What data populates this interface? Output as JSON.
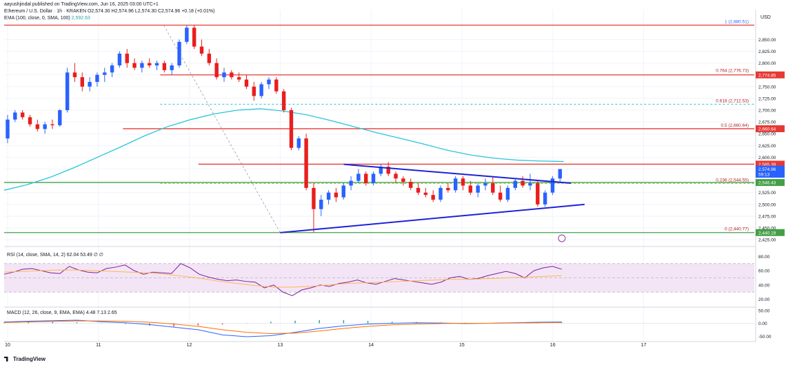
{
  "header": {
    "published": "aayushjindal published on TradingView.com, Jun 16, 2025 03:00 UTC+1",
    "symbol_line": "Ethereum / U.S. Dollar · 1h · KRAKEN  O2,574.30  H2,574.96  L2,574.30  C2,574.96  +0.18 (+0.01%)",
    "ema_line": "EMA (100, close, 0, SMA, 100)",
    "ema_value": "2,592.63"
  },
  "price_axis": {
    "currency": "USD"
  },
  "rsi_label": "RSI (14, close, SMA, 14, 2)",
  "rsi_values": "62.04  53.49  ∅  ∅",
  "macd_label": "MACD (12, 26, close, 9, EMA, EMA)",
  "macd_values": "4.48  7.13  2.65",
  "branding": {
    "logo_text": "TradingView"
  },
  "colors": {
    "bull": "#2962ff",
    "bear": "#e91e1e",
    "ema": "#26c6da",
    "resistance": "#e53935",
    "support": "#43a047",
    "trendline": "#1e22d6",
    "rsi": "#7b1fa2",
    "rsi_band": "#f3e5f5",
    "macd": "#2962ff",
    "signal": "#ff6d00"
  },
  "chart_data": [
    {
      "type": "candlestick",
      "title": "Ethereum / U.S. Dollar · 1h · KRAKEN",
      "x_ticks": [
        "10",
        "11",
        "12",
        "13",
        "14",
        "15",
        "16",
        "17"
      ],
      "y_ticks": [
        "2,425.00",
        "2,450.00",
        "2,475.00",
        "2,500.00",
        "2,525.00",
        "2,550.00",
        "2,575.00",
        "2,600.00",
        "2,625.00",
        "2,650.00",
        "2,675.00",
        "2,700.00",
        "2,725.00",
        "2,750.00",
        "2,775.00",
        "2,800.00",
        "2,825.00",
        "2,850.00"
      ],
      "ylim": [
        2415,
        2890
      ],
      "xlim": [
        0,
        8.18
      ],
      "ohlc": [
        [
          2640,
          2690,
          2630,
          2680
        ],
        [
          2680,
          2700,
          2675,
          2695
        ],
        [
          2695,
          2700,
          2680,
          2685
        ],
        [
          2685,
          2690,
          2665,
          2670
        ],
        [
          2670,
          2680,
          2655,
          2660
        ],
        [
          2660,
          2675,
          2650,
          2670
        ],
        [
          2670,
          2680,
          2660,
          2668
        ],
        [
          2668,
          2702,
          2665,
          2700
        ],
        [
          2700,
          2790,
          2695,
          2780
        ],
        [
          2780,
          2800,
          2760,
          2770
        ],
        [
          2770,
          2780,
          2740,
          2750
        ],
        [
          2750,
          2770,
          2740,
          2760
        ],
        [
          2760,
          2780,
          2750,
          2775
        ],
        [
          2775,
          2790,
          2760,
          2780
        ],
        [
          2780,
          2800,
          2770,
          2795
        ],
        [
          2795,
          2825,
          2790,
          2820
        ],
        [
          2820,
          2830,
          2790,
          2800
        ],
        [
          2800,
          2810,
          2785,
          2790
        ],
        [
          2790,
          2805,
          2780,
          2800
        ],
        [
          2800,
          2810,
          2790,
          2795
        ],
        [
          2795,
          2805,
          2785,
          2800
        ],
        [
          2800,
          2805,
          2780,
          2785
        ],
        [
          2785,
          2800,
          2775,
          2795
        ],
        [
          2795,
          2850,
          2790,
          2845
        ],
        [
          2845,
          2880,
          2840,
          2875
        ],
        [
          2875,
          2880,
          2830,
          2835
        ],
        [
          2835,
          2850,
          2815,
          2820
        ],
        [
          2820,
          2830,
          2795,
          2800
        ],
        [
          2800,
          2810,
          2765,
          2770
        ],
        [
          2770,
          2790,
          2760,
          2780
        ],
        [
          2780,
          2785,
          2765,
          2770
        ],
        [
          2770,
          2780,
          2760,
          2765
        ],
        [
          2765,
          2775,
          2745,
          2750
        ],
        [
          2750,
          2760,
          2720,
          2730
        ],
        [
          2730,
          2760,
          2725,
          2755
        ],
        [
          2755,
          2770,
          2745,
          2765
        ],
        [
          2765,
          2770,
          2735,
          2740
        ],
        [
          2740,
          2745,
          2695,
          2700
        ],
        [
          2700,
          2705,
          2615,
          2620
        ],
        [
          2620,
          2645,
          2615,
          2640
        ],
        [
          2640,
          2650,
          2530,
          2535
        ],
        [
          2535,
          2545,
          2440,
          2490
        ],
        [
          2490,
          2520,
          2475,
          2510
        ],
        [
          2510,
          2530,
          2500,
          2525
        ],
        [
          2525,
          2535,
          2505,
          2515
        ],
        [
          2515,
          2545,
          2510,
          2540
        ],
        [
          2540,
          2560,
          2530,
          2550
        ],
        [
          2550,
          2575,
          2545,
          2565
        ],
        [
          2565,
          2570,
          2540,
          2545
        ],
        [
          2545,
          2570,
          2540,
          2565
        ],
        [
          2565,
          2585,
          2560,
          2580
        ],
        [
          2580,
          2590,
          2560,
          2565
        ],
        [
          2565,
          2570,
          2545,
          2555
        ],
        [
          2555,
          2560,
          2540,
          2548
        ],
        [
          2548,
          2555,
          2530,
          2535
        ],
        [
          2535,
          2545,
          2520,
          2525
        ],
        [
          2525,
          2535,
          2515,
          2520
        ],
        [
          2520,
          2530,
          2505,
          2510
        ],
        [
          2510,
          2540,
          2505,
          2535
        ],
        [
          2535,
          2545,
          2525,
          2530
        ],
        [
          2530,
          2560,
          2525,
          2555
        ],
        [
          2555,
          2560,
          2530,
          2540
        ],
        [
          2540,
          2550,
          2520,
          2525
        ],
        [
          2525,
          2545,
          2515,
          2540
        ],
        [
          2540,
          2555,
          2530,
          2545
        ],
        [
          2545,
          2560,
          2520,
          2525
        ],
        [
          2525,
          2540,
          2505,
          2510
        ],
        [
          2510,
          2540,
          2505,
          2535
        ],
        [
          2535,
          2555,
          2530,
          2550
        ],
        [
          2550,
          2560,
          2535,
          2540
        ],
        [
          2540,
          2565,
          2530,
          2545
        ],
        [
          2545,
          2550,
          2495,
          2500
        ],
        [
          2500,
          2530,
          2495,
          2525
        ],
        [
          2525,
          2560,
          2520,
          2555
        ],
        [
          2555,
          2575,
          2545,
          2575
        ]
      ]
    },
    {
      "type": "line",
      "series": [
        {
          "name": "EMA (100)",
          "values": [
            2530,
            2542,
            2558,
            2578,
            2600,
            2622,
            2645,
            2665,
            2680,
            2692,
            2700,
            2703,
            2698,
            2690,
            2678,
            2665,
            2652,
            2640,
            2628,
            2615,
            2605,
            2598,
            2594,
            2592,
            2591
          ]
        }
      ]
    },
    {
      "type": "levels",
      "fibonacci": [
        {
          "label": "1 (2,880.51)",
          "value": 2880.51
        },
        {
          "label": "0.764 (2,776.73)",
          "value": 2776.73
        },
        {
          "label": "0.618 (2,712.53)",
          "value": 2712.53
        },
        {
          "label": "0.5 (2,660.64)",
          "value": 2660.64
        },
        {
          "label": "0.236 (2,544.55)",
          "value": 2544.55
        },
        {
          "label": "0 (2,440.77)",
          "value": 2440.77
        }
      ],
      "price_tags": [
        {
          "label": "2,774.85",
          "value": 2774.85,
          "color": "#e53935"
        },
        {
          "label": "2,660.64",
          "value": 2660.64,
          "color": "#e53935"
        },
        {
          "label": "2,585.39",
          "value": 2585.39,
          "color": "#e53935"
        },
        {
          "label": "2,574.96",
          "value": 2574.96,
          "color": "#2962ff"
        },
        {
          "label": "59:13",
          "value": 2564,
          "color": "#2962ff"
        },
        {
          "label": "2,546.43",
          "value": 2546.43,
          "color": "#43a047"
        },
        {
          "label": "2,440.19",
          "value": 2440.19,
          "color": "#43a047"
        }
      ],
      "trendlines": [
        {
          "from": [
            3.7,
            2585
          ],
          "to": [
            6.2,
            2545
          ]
        },
        {
          "from": [
            3.0,
            2440
          ],
          "to": [
            6.35,
            2500
          ]
        }
      ]
    },
    {
      "type": "line",
      "title": "RSI (14, close, SMA, 14, 2)",
      "y_ticks": [
        "80.00",
        "60.00",
        "40.00",
        "20.00"
      ],
      "ylim": [
        10,
        90
      ],
      "series": [
        {
          "name": "RSI",
          "values": [
            55,
            58,
            62,
            63,
            60,
            57,
            56,
            66,
            61,
            58,
            57,
            63,
            65,
            68,
            60,
            55,
            58,
            57,
            56,
            70,
            64,
            55,
            51,
            48,
            46,
            47,
            45,
            44,
            36,
            40,
            30,
            25,
            33,
            36,
            40,
            38,
            42,
            44,
            47,
            43,
            41,
            45,
            49,
            47,
            45,
            43,
            41,
            44,
            50,
            52,
            48,
            49,
            53,
            56,
            59,
            56,
            50,
            60,
            64,
            66,
            62
          ]
        },
        {
          "name": "SMA",
          "values": [
            58,
            59,
            60,
            61,
            61,
            60,
            59,
            58,
            57,
            55,
            52,
            49,
            45,
            42,
            39,
            37,
            37,
            38,
            40,
            42,
            43,
            44,
            45,
            46,
            47,
            48,
            48,
            49,
            50,
            51,
            52,
            53
          ]
        }
      ]
    },
    {
      "type": "bar",
      "title": "MACD (12, 26, close, 9, EMA, EMA)",
      "y_ticks": [
        "50.00",
        "0.00",
        "-50.00"
      ],
      "ylim": [
        -60,
        60
      ],
      "series": [
        {
          "name": "MACD",
          "values": [
            5,
            8,
            10,
            12,
            6,
            2,
            -5,
            -15,
            -25,
            -45,
            -52,
            -48,
            -35,
            -20,
            -10,
            -3,
            0,
            2,
            1,
            -1,
            0,
            2,
            4,
            5
          ]
        },
        {
          "name": "Signal",
          "values": [
            3,
            5,
            7,
            9,
            9,
            8,
            4,
            -3,
            -12,
            -25,
            -35,
            -40,
            -38,
            -30,
            -20,
            -12,
            -6,
            -3,
            -1,
            0,
            0,
            1,
            2,
            3
          ]
        },
        {
          "name": "Histogram",
          "values": [
            3,
            5,
            5,
            4,
            1,
            -3,
            -9,
            -13,
            -9,
            -5,
            1,
            6,
            10,
            12,
            12,
            9,
            6,
            5,
            3,
            2,
            1,
            2,
            2,
            2
          ]
        }
      ]
    }
  ]
}
